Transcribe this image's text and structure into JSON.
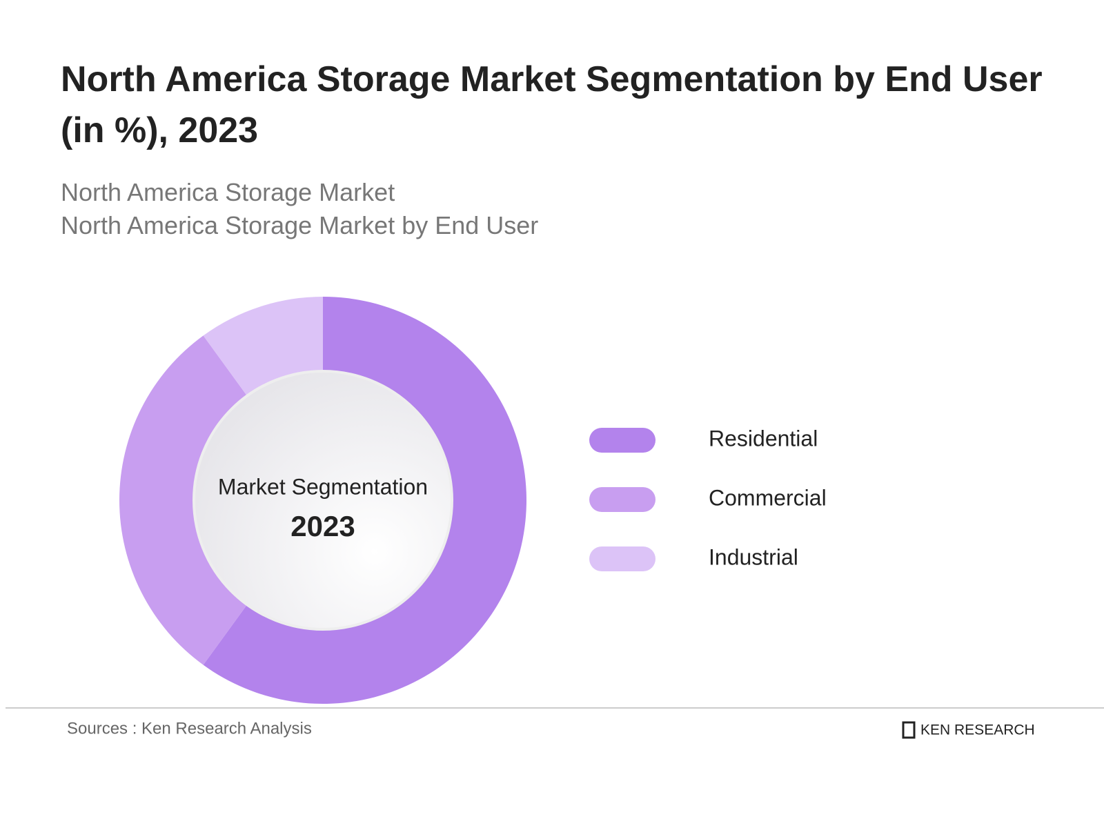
{
  "chart_data": {
    "type": "donut",
    "title": "North America Storage Market Segmentation by End User (in %), 2023",
    "subtitle": [
      "North America Storage Market",
      "North America Storage Market by End User"
    ],
    "center_label": "Market Segmentation",
    "center_year": "2023",
    "categories": [
      "Residential",
      "Commercial",
      "Industrial"
    ],
    "values": [
      60,
      30,
      10
    ],
    "colors": [
      "#b383ec",
      "#c89ef0",
      "#dcc3f7"
    ],
    "source": "Sources : Ken Research Analysis",
    "brand": "KEN RESEARCH"
  }
}
